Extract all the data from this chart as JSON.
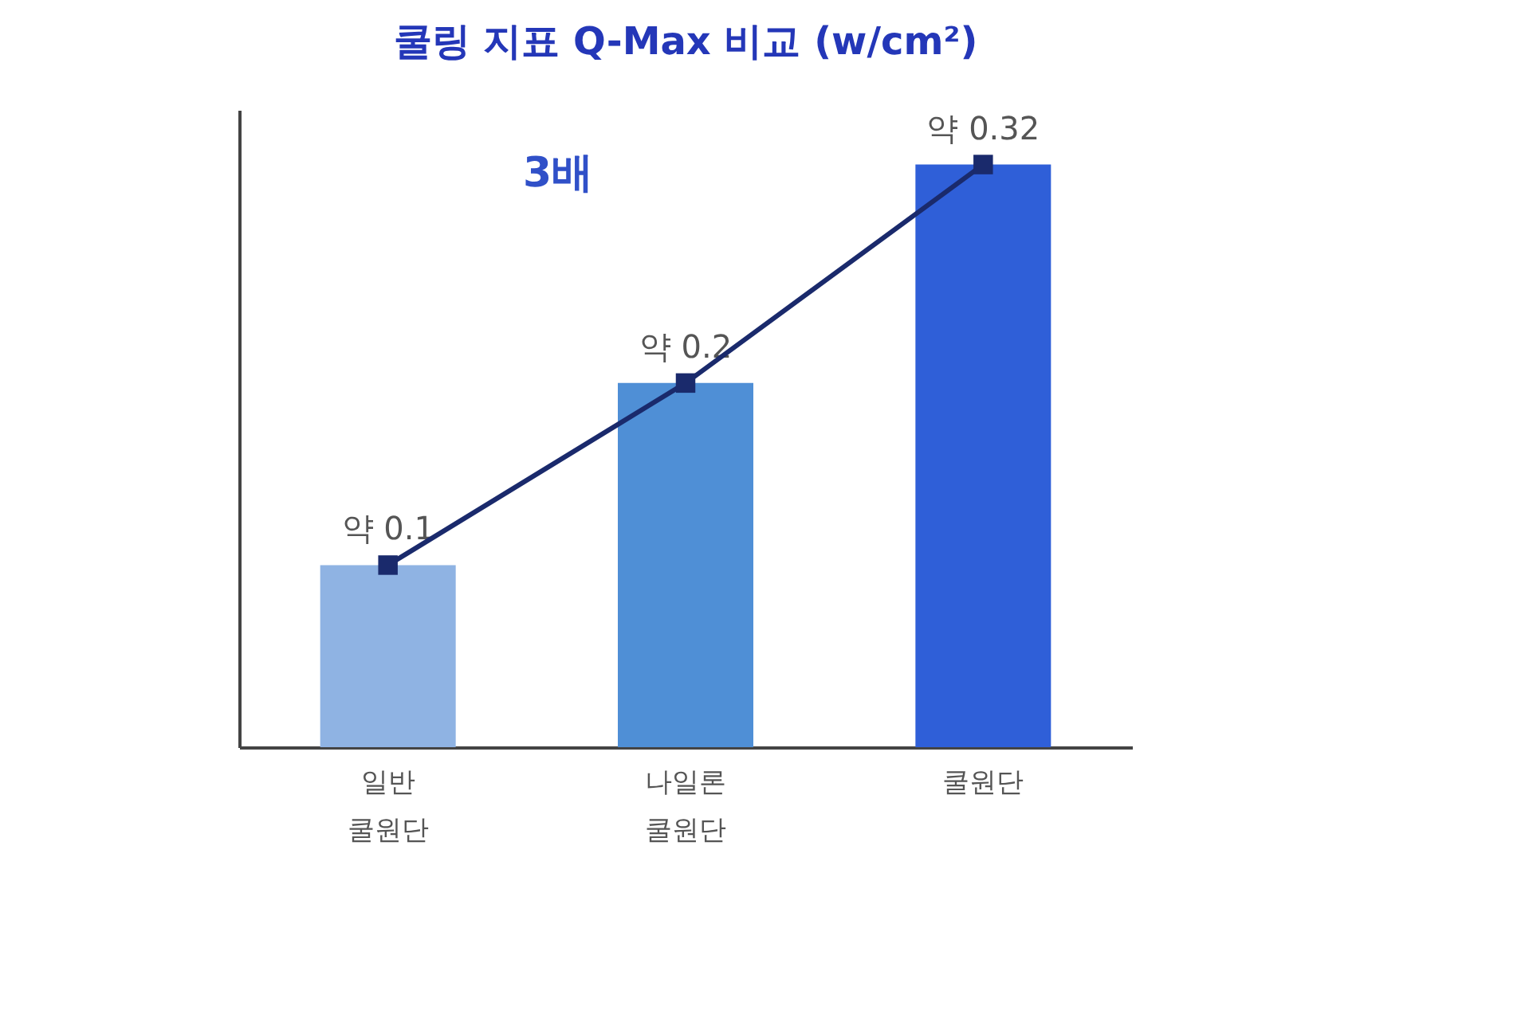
{
  "chart_data": {
    "type": "bar",
    "title": "쿨링 지표 Q-Max  비교 (w/cm²)",
    "categories": [
      "일반\n쿨원단",
      "나일론\n쿨원단",
      "쿨원단"
    ],
    "series": [
      {
        "values": [
          0.1,
          0.2,
          0.32
        ],
        "colors": [
          "#8fb3e3",
          "#4f8fd6",
          "#2f5fd8"
        ],
        "value_labels": [
          "약 0.1",
          "약 0.2",
          "약 0.32"
        ]
      },
      {
        "type": "line",
        "values": [
          0.1,
          0.2,
          0.32
        ],
        "color": "#1a2a6c",
        "marker": "square"
      }
    ],
    "annotations": [
      "3배"
    ]
  }
}
